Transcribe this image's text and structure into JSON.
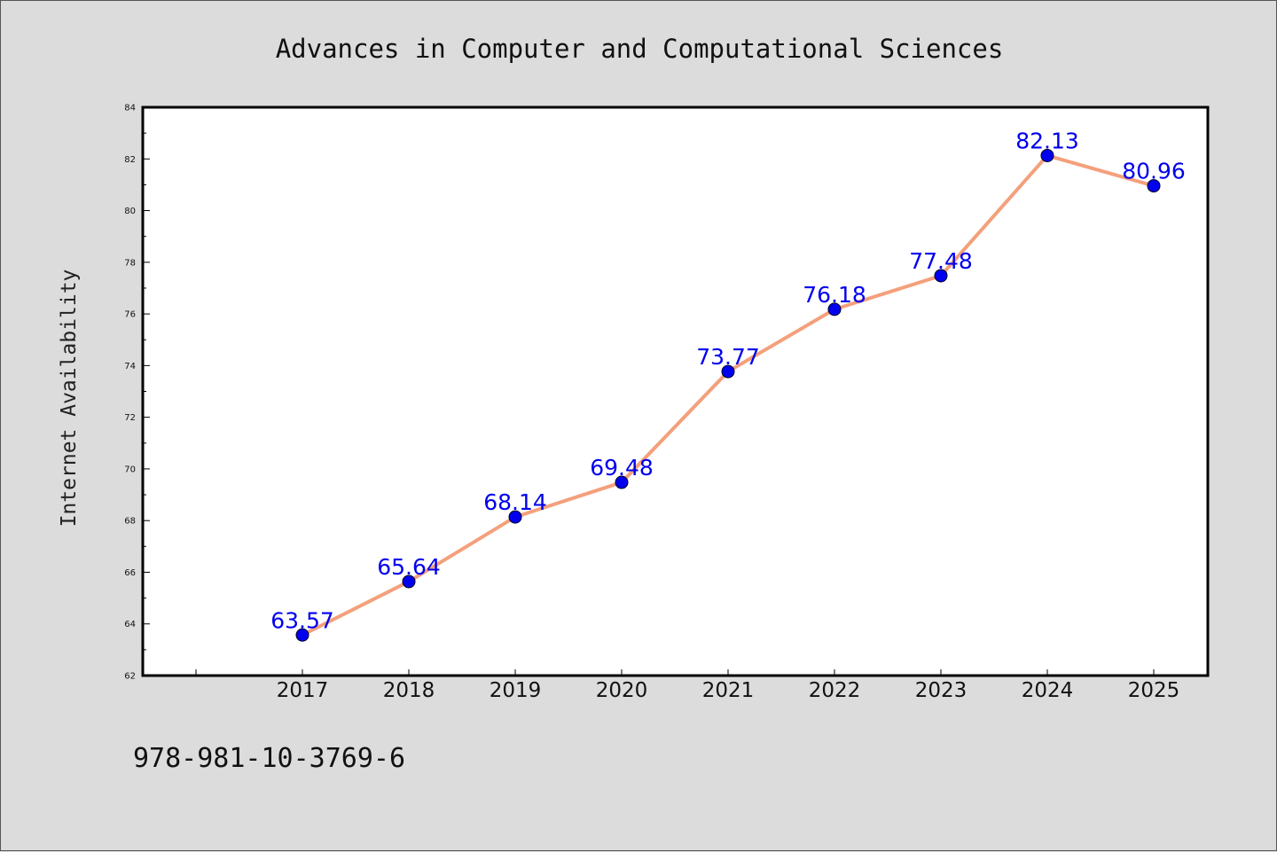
{
  "colors": {
    "background": "#dcdcdc",
    "plot_background": "#ffffff",
    "line": "#f4a07c",
    "marker": "#0000ee",
    "data_label": "#0000ee"
  },
  "isbn": "978-981-10-3769-6",
  "chart_data": {
    "type": "line",
    "title": "Advances in Computer and Computational Sciences",
    "xlabel": "",
    "ylabel": "Internet Availability",
    "categories": [
      "2017",
      "2018",
      "2019",
      "2020",
      "2021",
      "2022",
      "2023",
      "2024",
      "2025"
    ],
    "series": [
      {
        "values": [
          63.57,
          65.64,
          68.14,
          69.48,
          73.77,
          76.18,
          77.48,
          82.13,
          80.96
        ],
        "data_labels": [
          "63.57",
          "65.64",
          "68.14",
          "69.48",
          "73.77",
          "76.18",
          "77.48",
          "82.13",
          "80.96"
        ]
      }
    ],
    "ylim": [
      62,
      84
    ],
    "yticks": [
      "62",
      "64",
      "66",
      "68",
      "70",
      "72",
      "74",
      "76",
      "78",
      "80",
      "82",
      "84"
    ],
    "grid": false,
    "legend": false
  }
}
